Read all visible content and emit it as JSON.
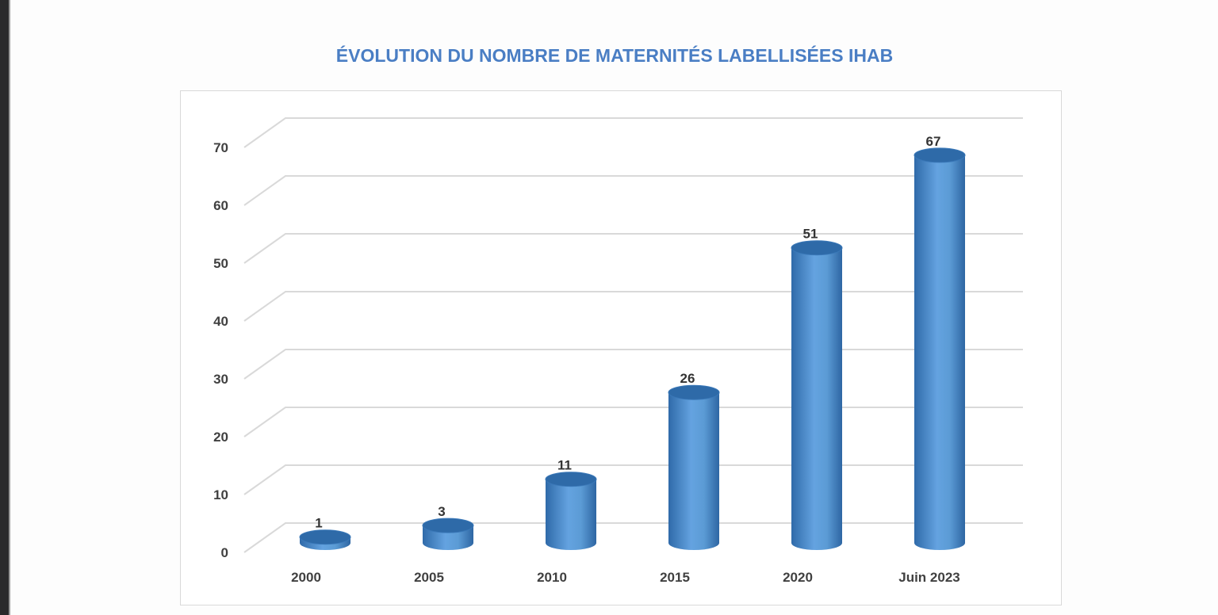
{
  "chart_data": {
    "type": "bar",
    "style": "3d-cylinder",
    "title": "ÉVOLUTION DU NOMBRE DE MATERNITÉS LABELLISÉES IHAB",
    "categories": [
      "2000",
      "2005",
      "2010",
      "2015",
      "2020",
      "Juin 2023"
    ],
    "values": [
      1,
      3,
      11,
      26,
      51,
      67
    ],
    "data_labels": [
      "1",
      "3",
      "11",
      "26",
      "51",
      "67"
    ],
    "ylim": [
      0,
      70
    ],
    "yticks": [
      "0",
      "10",
      "20",
      "30",
      "40",
      "50",
      "60",
      "70"
    ],
    "grid": true,
    "legend": "none",
    "colors": {
      "bar": "#5b9bd5",
      "bar_dark": "#2e6aa8",
      "title": "#4a7ec4",
      "grid": "#d9d9d9"
    }
  }
}
